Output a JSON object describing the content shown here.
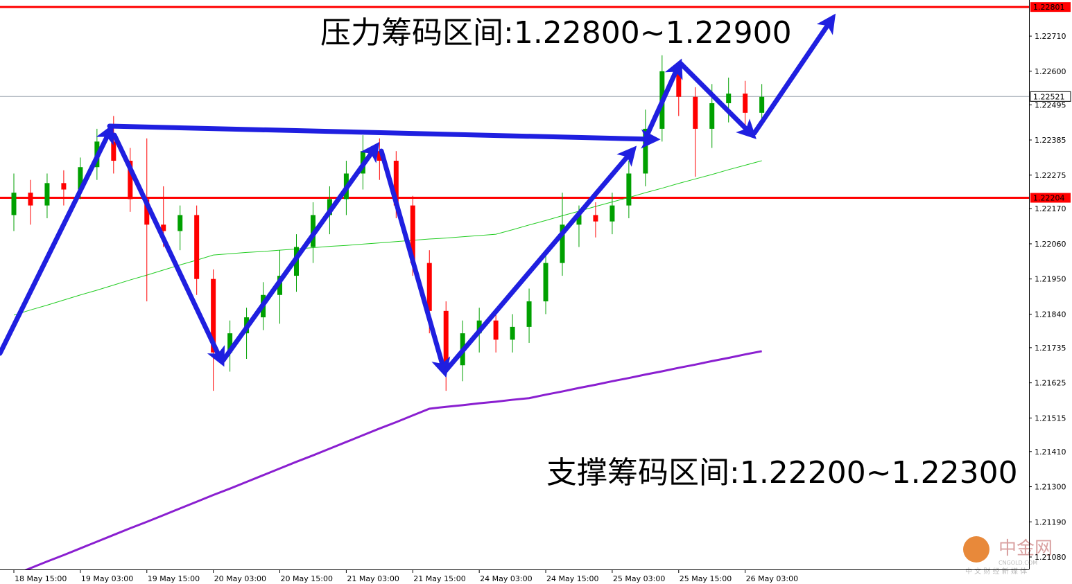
{
  "chart_data": {
    "type": "candlestick",
    "annotations": [
      "压力筹码区间:1.22800~1.22900",
      "支撑筹码区间:1.22200~1.22300"
    ],
    "watermark": {
      "brand": "中金网",
      "site": "CNGOLD.COM",
      "slogan": "中 文 财 经 新 媒 体"
    },
    "categories": [
      "18 May 15:00",
      null,
      null,
      null,
      "19 May 03:00",
      null,
      null,
      null,
      "19 May 15:00",
      null,
      null,
      null,
      "20 May 03:00",
      null,
      null,
      null,
      "20 May 15:00",
      null,
      null,
      null,
      "21 May 03:00",
      null,
      null,
      null,
      "21 May 15:00",
      null,
      null,
      null,
      "24 May 03:00",
      null,
      null,
      null,
      "24 May 15:00",
      null,
      null,
      null,
      "25 May 03:00",
      null,
      null,
      null,
      "25 May 15:00",
      null,
      null,
      null,
      "26 May 03:00",
      null
    ],
    "open": [
      1.2215,
      1.2222,
      1.2218,
      1.2225,
      1.2223,
      1.223,
      1.2238,
      1.2232,
      1.222,
      1.2212,
      1.221,
      1.2215,
      1.2195,
      1.2172,
      1.2178,
      1.2183,
      1.219,
      1.2196,
      1.2205,
      1.2215,
      1.222,
      1.2228,
      1.2235,
      1.2232,
      1.2218,
      1.22,
      1.2185,
      1.2168,
      1.2178,
      1.2182,
      1.2176,
      1.218,
      1.2188,
      1.22,
      1.2212,
      1.2215,
      1.2213,
      1.2218,
      1.2228,
      1.2242,
      1.226,
      1.2252,
      1.2242,
      1.225,
      1.2253,
      1.2247
    ],
    "high": [
      1.2228,
      1.2226,
      1.2228,
      1.2229,
      1.2233,
      1.2242,
      1.2246,
      1.2236,
      1.2239,
      1.2224,
      1.2218,
      1.2218,
      1.2198,
      1.2182,
      1.2186,
      1.2194,
      1.2204,
      1.2209,
      1.2219,
      1.2224,
      1.2232,
      1.224,
      1.2239,
      1.2235,
      1.2221,
      1.2204,
      1.2188,
      1.2182,
      1.2186,
      1.2185,
      1.2184,
      1.2192,
      1.2204,
      1.2222,
      1.2218,
      1.2219,
      1.2222,
      1.2232,
      1.2248,
      1.2265,
      1.2263,
      1.2255,
      1.2256,
      1.2258,
      1.2257,
      1.2256
    ],
    "low": [
      1.221,
      1.2212,
      1.2214,
      1.2218,
      1.222,
      1.2226,
      1.2228,
      1.2216,
      1.2188,
      1.2205,
      1.2204,
      1.219,
      1.216,
      1.2166,
      1.217,
      1.2179,
      1.2181,
      1.2191,
      1.22,
      1.2209,
      1.2215,
      1.2223,
      1.2226,
      1.2214,
      1.2196,
      1.2178,
      1.216,
      1.2163,
      1.2172,
      1.2172,
      1.2172,
      1.2175,
      1.2184,
      1.2196,
      1.2205,
      1.2208,
      1.2209,
      1.2214,
      1.2224,
      1.2238,
      1.2246,
      1.2227,
      1.2236,
      1.2244,
      1.224,
      1.2245
    ],
    "close": [
      1.2222,
      1.2218,
      1.2225,
      1.2223,
      1.223,
      1.2238,
      1.2232,
      1.222,
      1.2212,
      1.221,
      1.2215,
      1.2195,
      1.2172,
      1.2178,
      1.2183,
      1.219,
      1.2196,
      1.2205,
      1.2215,
      1.222,
      1.2228,
      1.2235,
      1.2232,
      1.2218,
      1.22,
      1.2185,
      1.2168,
      1.2178,
      1.2182,
      1.2176,
      1.218,
      1.2188,
      1.22,
      1.2212,
      1.2215,
      1.2213,
      1.2218,
      1.2228,
      1.2242,
      1.226,
      1.2252,
      1.2242,
      1.225,
      1.2253,
      1.2247,
      1.2252
    ],
    "up_color": "#00a000",
    "down_color": "#ff0000",
    "series": [
      {
        "color": "#8a1fd0",
        "values": [
          1.21024,
          1.21045,
          1.21066,
          1.21086,
          1.21107,
          1.21128,
          1.21149,
          1.2117,
          1.2119,
          1.21211,
          1.21232,
          1.21253,
          1.21274,
          1.21294,
          1.21315,
          1.21336,
          1.21357,
          1.21378,
          1.21398,
          1.21419,
          1.2144,
          1.21461,
          1.21482,
          1.21502,
          1.21523,
          1.21544,
          1.2155,
          1.21555,
          1.21561,
          1.21566,
          1.21572,
          1.21577,
          1.21588,
          1.21598,
          1.21609,
          1.21619,
          1.2163,
          1.2164,
          1.21651,
          1.21661,
          1.21672,
          1.21682,
          1.21693,
          1.21703,
          1.21714,
          1.21724
        ]
      },
      {
        "color": "#22cc22",
        "values": [
          1.21837,
          1.21853,
          1.21868,
          1.21884,
          1.219,
          1.21915,
          1.21931,
          1.21947,
          1.21962,
          1.21978,
          1.21994,
          1.22009,
          1.22025,
          1.22029,
          1.22033,
          1.22036,
          1.2204,
          1.22044,
          1.22048,
          1.22052,
          1.22055,
          1.22059,
          1.22063,
          1.22067,
          1.22071,
          1.22075,
          1.22078,
          1.22082,
          1.22086,
          1.2209,
          1.22104,
          1.22119,
          1.22133,
          1.22148,
          1.22162,
          1.22177,
          1.22191,
          1.22205,
          1.2222,
          1.22234,
          1.22249,
          1.22263,
          1.22277,
          1.22292,
          1.22306,
          1.2232
        ]
      }
    ],
    "hlines": [
      {
        "value": 1.22801,
        "color": "#ff0000"
      },
      {
        "value": 1.22204,
        "color": "#ff0000"
      },
      {
        "value": 1.22521,
        "color": "#9aa4ad"
      }
    ],
    "ylim": [
      1.21041,
      1.22823
    ],
    "yticks": [
      {
        "value": 1.2271,
        "label": "1.22710"
      },
      {
        "value": 1.226,
        "label": "1.22600"
      },
      1.22495,
      1.22385,
      1.22275,
      {
        "value": 1.2217,
        "label": "1.22170"
      },
      {
        "value": 1.2206,
        "label": "1.22060"
      },
      {
        "value": 1.2195,
        "label": "1.21950"
      },
      {
        "value": 1.2184,
        "label": "1.21840"
      },
      1.21735,
      1.21625,
      1.21515,
      {
        "value": 1.2141,
        "label": "1.21410"
      },
      {
        "value": 1.213,
        "label": "1.21300"
      },
      {
        "value": 1.2119,
        "label": "1.21190"
      },
      {
        "value": 1.2108,
        "label": "1.21080"
      }
    ]
  }
}
